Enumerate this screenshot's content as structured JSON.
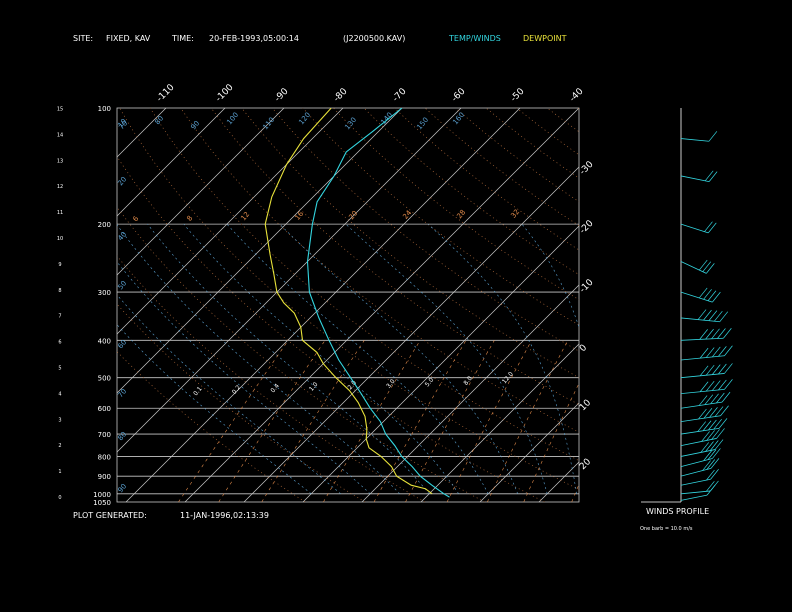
{
  "header": {
    "site_label": "SITE:",
    "site_value": "FIXED, KAV",
    "time_label": "TIME:",
    "time_value": "20-FEB-1993,05:00:14",
    "file_id": "(J2200500.KAV)",
    "legend_temp": "TEMP/WINDS",
    "legend_dew": "DEWPOINT"
  },
  "footer": {
    "generated_label": "PLOT GENERATED:",
    "generated_value": "11-JAN-1996,02:13:39"
  },
  "winds_panel": {
    "title": "WINDS PROFILE",
    "note": "One barb = 10.0 m/s"
  },
  "colors": {
    "temp": "#33d6e0",
    "dewpoint": "#e8e23a",
    "grid": "#c8c8c8",
    "mixing_ratio": "#e08a4a",
    "moist_adiabat": "#5aa0d0",
    "dry_adiabat": "#b06a3a",
    "header_text": "#ffffff"
  },
  "chart_data": {
    "type": "line",
    "title": "",
    "xlabel": "",
    "ylabel": "",
    "left_axis_km": [
      "0",
      "1",
      "2",
      "3",
      "4",
      "5",
      "6",
      "7",
      "8",
      "9",
      "10",
      "11",
      "12",
      "13",
      "14",
      "15"
    ],
    "pressure_levels": [
      {
        "label": "100",
        "p": 100
      },
      {
        "label": "200",
        "p": 200
      },
      {
        "label": "300",
        "p": 300
      },
      {
        "label": "400",
        "p": 400
      },
      {
        "label": "500",
        "p": 500
      },
      {
        "label": "600",
        "p": 600
      },
      {
        "label": "700",
        "p": 700
      },
      {
        "label": "800",
        "p": 800
      },
      {
        "label": "900",
        "p": 900
      },
      {
        "label": "1000",
        "p": 1000
      },
      {
        "label": "1050",
        "p": 1050
      }
    ],
    "top_isotherm_labels": [
      "-110",
      "-100",
      "-90",
      "-80",
      "-70",
      "-60",
      "-50",
      "-40"
    ],
    "right_isotherm_labels": [
      "-30",
      "-20",
      "-10",
      "0",
      "10",
      "20",
      "30"
    ],
    "mixing_ratio_labels": [
      "0.1",
      "0.2",
      "0.4",
      "1.0",
      "2.0",
      "3.0",
      "5.0",
      "8.0",
      "12.0"
    ],
    "dry_adiabat_labels": [
      "6",
      "8",
      "12",
      "16",
      "20",
      "24",
      "28",
      "32"
    ],
    "theta_labels": [
      "70",
      "80",
      "90",
      "100",
      "110",
      "120",
      "130",
      "140",
      "150",
      "160"
    ],
    "temperature": [
      {
        "p": 1020,
        "t": 4.0
      },
      {
        "p": 1000,
        "t": 2.5
      },
      {
        "p": 950,
        "t": -1.0
      },
      {
        "p": 900,
        "t": -4.5
      },
      {
        "p": 850,
        "t": -7.5
      },
      {
        "p": 800,
        "t": -11.0
      },
      {
        "p": 750,
        "t": -14.0
      },
      {
        "p": 700,
        "t": -17.5
      },
      {
        "p": 650,
        "t": -20.5
      },
      {
        "p": 600,
        "t": -24.5
      },
      {
        "p": 550,
        "t": -28.5
      },
      {
        "p": 500,
        "t": -33.0
      },
      {
        "p": 450,
        "t": -38.0
      },
      {
        "p": 400,
        "t": -43.0
      },
      {
        "p": 350,
        "t": -48.5
      },
      {
        "p": 300,
        "t": -54.5
      },
      {
        "p": 250,
        "t": -60.0
      },
      {
        "p": 200,
        "t": -65.5
      },
      {
        "p": 175,
        "t": -68.5
      },
      {
        "p": 150,
        "t": -70.0
      },
      {
        "p": 130,
        "t": -72.0
      },
      {
        "p": 115,
        "t": -71.0
      },
      {
        "p": 100,
        "t": -70.0
      }
    ],
    "dewpoint": [
      {
        "p": 1000,
        "t": 0.5
      },
      {
        "p": 970,
        "t": -1.5
      },
      {
        "p": 950,
        "t": -4.5
      },
      {
        "p": 900,
        "t": -8.5
      },
      {
        "p": 850,
        "t": -11.0
      },
      {
        "p": 800,
        "t": -14.5
      },
      {
        "p": 760,
        "t": -18.0
      },
      {
        "p": 720,
        "t": -20.0
      },
      {
        "p": 680,
        "t": -21.5
      },
      {
        "p": 630,
        "t": -24.0
      },
      {
        "p": 580,
        "t": -27.5
      },
      {
        "p": 540,
        "t": -31.0
      },
      {
        "p": 500,
        "t": -35.5
      },
      {
        "p": 460,
        "t": -40.0
      },
      {
        "p": 430,
        "t": -43.0
      },
      {
        "p": 400,
        "t": -47.5
      },
      {
        "p": 370,
        "t": -50.0
      },
      {
        "p": 340,
        "t": -53.5
      },
      {
        "p": 320,
        "t": -57.0
      },
      {
        "p": 300,
        "t": -60.0
      },
      {
        "p": 270,
        "t": -63.5
      },
      {
        "p": 240,
        "t": -67.5
      },
      {
        "p": 200,
        "t": -73.5
      },
      {
        "p": 170,
        "t": -77.0
      },
      {
        "p": 140,
        "t": -80.0
      },
      {
        "p": 120,
        "t": -81.5
      },
      {
        "p": 100,
        "t": -82.0
      }
    ],
    "winds": [
      {
        "p": 1040,
        "speed": 8,
        "dir": 250
      },
      {
        "p": 1000,
        "speed": 15,
        "dir": 260
      },
      {
        "p": 950,
        "speed": 20,
        "dir": 250
      },
      {
        "p": 900,
        "speed": 25,
        "dir": 245
      },
      {
        "p": 850,
        "speed": 30,
        "dir": 245
      },
      {
        "p": 800,
        "speed": 35,
        "dir": 250
      },
      {
        "p": 750,
        "speed": 40,
        "dir": 250
      },
      {
        "p": 700,
        "speed": 45,
        "dir": 255
      },
      {
        "p": 650,
        "speed": 50,
        "dir": 255
      },
      {
        "p": 600,
        "speed": 55,
        "dir": 255
      },
      {
        "p": 550,
        "speed": 60,
        "dir": 260
      },
      {
        "p": 500,
        "speed": 60,
        "dir": 260
      },
      {
        "p": 450,
        "speed": 60,
        "dir": 260
      },
      {
        "p": 400,
        "speed": 55,
        "dir": 265
      },
      {
        "p": 350,
        "speed": 45,
        "dir": 280
      },
      {
        "p": 300,
        "speed": 35,
        "dir": 300
      },
      {
        "p": 250,
        "speed": 25,
        "dir": 310
      },
      {
        "p": 200,
        "speed": 20,
        "dir": 300
      },
      {
        "p": 150,
        "speed": 15,
        "dir": 290
      },
      {
        "p": 120,
        "speed": 10,
        "dir": 280
      }
    ]
  }
}
